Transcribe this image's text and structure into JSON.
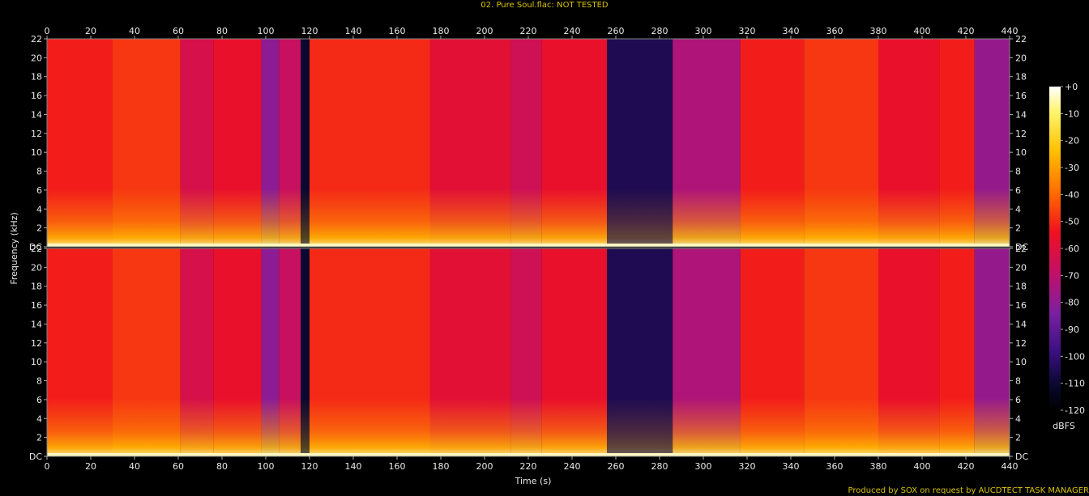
{
  "title": "02. Pure Soul.flac: NOT TESTED",
  "footer": "Produced by SOX on request by AUCDTECT TASK MANAGER",
  "colors": {
    "background": "#000000",
    "title_text": "#d8c200",
    "axis_text": "#e8e8e8",
    "plot_border": "#888888"
  },
  "chart_data": {
    "type": "heatmap",
    "title": "02. Pure Soul.flac: NOT TESTED",
    "xlabel": "Time (s)",
    "ylabel": "Frequency (kHz)",
    "xlim": [
      0,
      440
    ],
    "ylim": [
      0,
      22
    ],
    "x_ticks": [
      0,
      20,
      40,
      60,
      80,
      100,
      120,
      140,
      160,
      180,
      200,
      220,
      240,
      260,
      280,
      300,
      320,
      340,
      360,
      380,
      400,
      420,
      440
    ],
    "y_ticks": [
      0,
      2,
      4,
      6,
      8,
      10,
      12,
      14,
      16,
      18,
      20,
      22
    ],
    "y_tick_labels": [
      "DC",
      "2",
      "4",
      "6",
      "8",
      "10",
      "12",
      "14",
      "16",
      "18",
      "20",
      "22"
    ],
    "channels": 2,
    "colorbar": {
      "label": "dBFS",
      "ticks": [
        0,
        -10,
        -20,
        -30,
        -40,
        -50,
        -60,
        -70,
        -80,
        -90,
        -100,
        -110,
        -120
      ],
      "tick_labels": [
        "+0",
        "-10",
        "-20",
        "-30",
        "-40",
        "-50",
        "-60",
        "-70",
        "-80",
        "-90",
        "-100",
        "-110",
        "-120"
      ],
      "range": [
        -120,
        0
      ]
    },
    "segments": [
      {
        "start": 0,
        "end": 30,
        "level_db": -52
      },
      {
        "start": 30,
        "end": 61,
        "level_db": -48
      },
      {
        "start": 61,
        "end": 76,
        "level_db": -62
      },
      {
        "start": 76,
        "end": 98,
        "level_db": -56
      },
      {
        "start": 98,
        "end": 106,
        "level_db": -80
      },
      {
        "start": 106,
        "end": 116,
        "level_db": -66
      },
      {
        "start": 116,
        "end": 120,
        "level_db": -110
      },
      {
        "start": 120,
        "end": 175,
        "level_db": -50
      },
      {
        "start": 175,
        "end": 212,
        "level_db": -58
      },
      {
        "start": 212,
        "end": 226,
        "level_db": -64
      },
      {
        "start": 226,
        "end": 256,
        "level_db": -56
      },
      {
        "start": 256,
        "end": 286,
        "level_db": -105
      },
      {
        "start": 286,
        "end": 317,
        "level_db": -72
      },
      {
        "start": 317,
        "end": 346,
        "level_db": -52
      },
      {
        "start": 346,
        "end": 380,
        "level_db": -48
      },
      {
        "start": 380,
        "end": 408,
        "level_db": -56
      },
      {
        "start": 408,
        "end": 424,
        "level_db": -52
      },
      {
        "start": 424,
        "end": 440,
        "level_db": -78
      }
    ]
  }
}
